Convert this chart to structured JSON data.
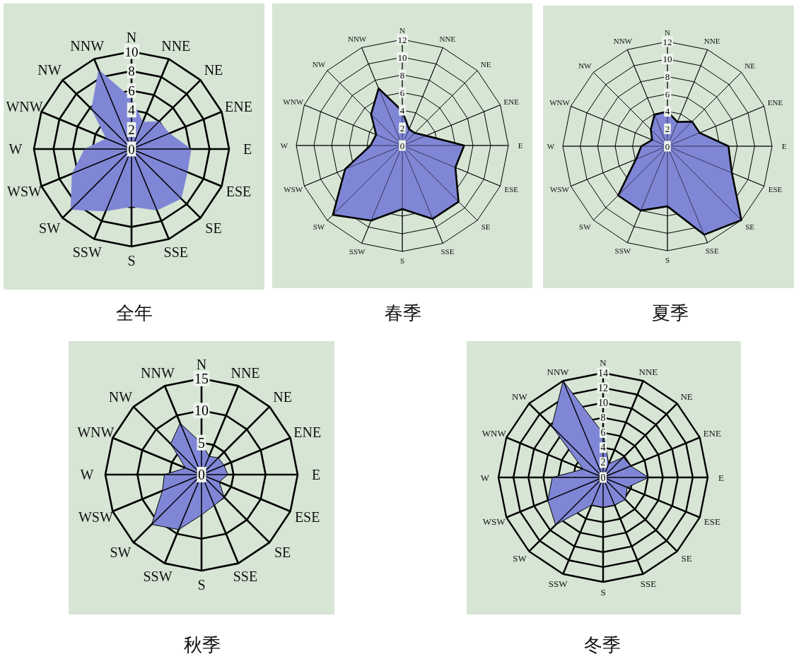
{
  "chart_data": [
    {
      "type": "radar",
      "title": "全年",
      "categories": [
        "N",
        "NNE",
        "NE",
        "ENE",
        "E",
        "ESE",
        "SE",
        "SSE",
        "S",
        "SSW",
        "SW",
        "WSW",
        "W",
        "WNW",
        "NW",
        "NNW"
      ],
      "ylim": [
        0,
        10
      ],
      "yticks": [
        0,
        2,
        4,
        6,
        8,
        10
      ],
      "series": [
        {
          "color": "#7f86d6",
          "values": [
            5.2,
            3.0,
            4.0,
            4.2,
            6.1,
            6.2,
            7.2,
            6.8,
            5.9,
            6.9,
            8.8,
            6.6,
            4.8,
            2.8,
            5.8,
            8.8
          ]
        }
      ]
    },
    {
      "type": "radar",
      "title": "春季",
      "categories": [
        "N",
        "NNE",
        "NE",
        "ENE",
        "E",
        "ESE",
        "SE",
        "SSE",
        "S",
        "SSW",
        "SW",
        "WSW",
        "W",
        "WNW",
        "NW",
        "NNW"
      ],
      "ylim": [
        0,
        12
      ],
      "yticks": [
        0,
        2,
        4,
        6,
        8,
        10,
        12
      ],
      "series": [
        {
          "color": "#7f86d6",
          "values": [
            3.9,
            2.0,
            2.0,
            2.9,
            7.0,
            6.5,
            9.0,
            9.0,
            7.2,
            9.2,
            11.1,
            7.0,
            3.6,
            3.2,
            5.0,
            7.0
          ]
        }
      ]
    },
    {
      "type": "radar",
      "title": "夏季",
      "categories": [
        "N",
        "NNE",
        "NE",
        "ENE",
        "E",
        "ESE",
        "SE",
        "SSE",
        "S",
        "SSW",
        "SW",
        "WSW",
        "W",
        "WNW",
        "NW",
        "NNW"
      ],
      "ylim": [
        0,
        12
      ],
      "yticks": [
        0,
        2,
        4,
        6,
        8,
        10,
        12
      ],
      "series": [
        {
          "color": "#7f86d6",
          "values": [
            4.0,
            3.0,
            4.0,
            4.0,
            7.0,
            8.0,
            12.0,
            11.0,
            6.9,
            8.0,
            8.0,
            3.9,
            3.0,
            1.9,
            2.7,
            3.9
          ]
        }
      ]
    },
    {
      "type": "radar",
      "title": "秋季",
      "categories": [
        "N",
        "NNE",
        "NE",
        "ENE",
        "E",
        "ESE",
        "SE",
        "SSE",
        "S",
        "SSW",
        "SW",
        "WSW",
        "W",
        "WNW",
        "NW",
        "NNW"
      ],
      "ylim": [
        0,
        15
      ],
      "yticks": [
        0,
        5,
        10,
        15
      ],
      "series": [
        {
          "color": "#7f86d6",
          "values": [
            4.9,
            3.1,
            3.7,
            3.8,
            4.1,
            3.0,
            5.0,
            5.2,
            6.3,
            9.3,
            11.0,
            6.6,
            5.8,
            2.7,
            6.8,
            8.7
          ]
        }
      ]
    },
    {
      "type": "radar",
      "title": "冬季",
      "categories": [
        "N",
        "NNE",
        "NE",
        "ENE",
        "E",
        "ESE",
        "SE",
        "SSE",
        "S",
        "SSW",
        "SW",
        "WSW",
        "W",
        "WNW",
        "NW",
        "NNW"
      ],
      "ylim": [
        0,
        14
      ],
      "yticks": [
        0,
        2,
        4,
        6,
        8,
        10,
        12,
        14
      ],
      "series": [
        {
          "color": "#7f86d6",
          "values": [
            5.9,
            2.0,
            3.8,
            4.0,
            6.1,
            3.5,
            4.2,
            4.0,
            4.0,
            4.0,
            9.0,
            8.0,
            6.8,
            2.9,
            9.7,
            14.0
          ]
        }
      ]
    }
  ]
}
